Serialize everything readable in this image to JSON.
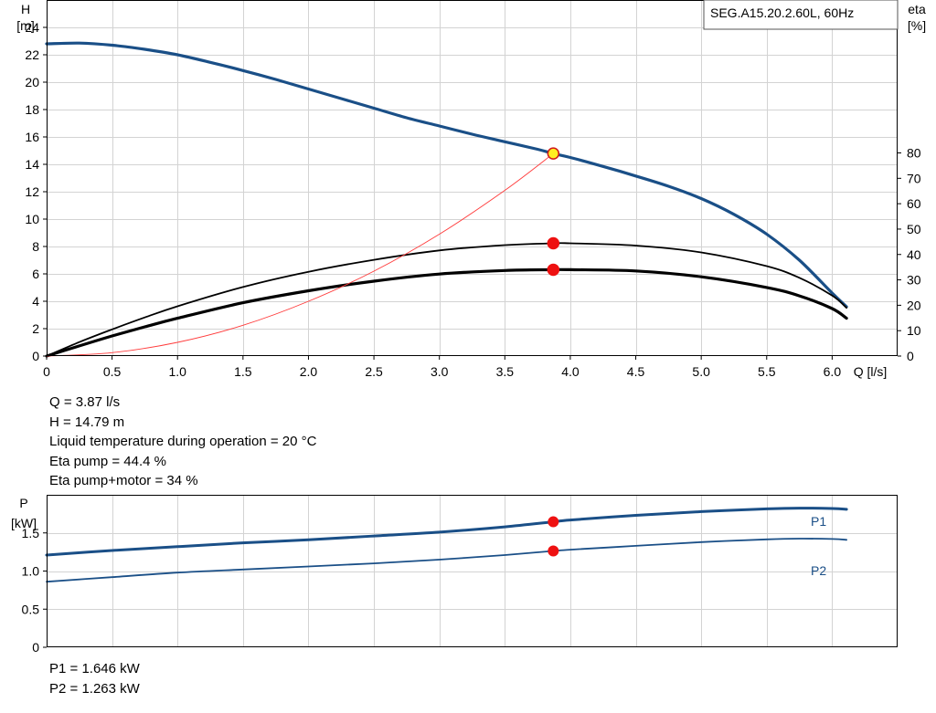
{
  "chart_data": [
    {
      "type": "line",
      "title": "SEG.A15.20.2.60L, 60Hz",
      "xlabel": "Q [l/s]",
      "ylabel_left_name": "H",
      "ylabel_left_unit": "[m]",
      "ylabel_right_name": "eta",
      "ylabel_right_unit": "[%]",
      "xlim": [
        0,
        6.5
      ],
      "ylim_left": [
        0,
        26
      ],
      "ylim_right": [
        0,
        80
      ],
      "x_ticks": [
        "0",
        "0.5",
        "1.0",
        "1.5",
        "2.0",
        "2.5",
        "3.0",
        "3.5",
        "4.0",
        "4.5",
        "5.0",
        "5.5",
        "6.0"
      ],
      "y_left_ticks": [
        "0",
        "2",
        "4",
        "6",
        "8",
        "10",
        "12",
        "14",
        "16",
        "18",
        "20",
        "22",
        "24"
      ],
      "y_right_ticks": [
        "0",
        "10",
        "20",
        "30",
        "40",
        "50",
        "60",
        "70",
        "80"
      ],
      "grid": true,
      "series": [
        {
          "axis": "left",
          "color": "#1a4f87",
          "width": 3.2,
          "x": [
            0,
            0.25,
            0.5,
            0.75,
            1.0,
            1.25,
            1.5,
            1.75,
            2.0,
            2.25,
            2.5,
            2.75,
            3.0,
            3.25,
            3.5,
            3.75,
            3.87,
            4.0,
            4.25,
            4.5,
            4.75,
            5.0,
            5.25,
            5.5,
            5.75,
            6.0,
            6.11
          ],
          "y": [
            22.8,
            22.85,
            22.7,
            22.4,
            22.0,
            21.45,
            20.85,
            20.2,
            19.5,
            18.8,
            18.1,
            17.4,
            16.8,
            16.2,
            15.65,
            15.1,
            14.79,
            14.5,
            13.85,
            13.15,
            12.4,
            11.5,
            10.35,
            8.9,
            7.0,
            4.6,
            3.6
          ]
        },
        {
          "axis": "right",
          "color": "#000000",
          "width": 1.8,
          "x": [
            0,
            0.25,
            0.5,
            0.75,
            1.0,
            1.5,
            2.0,
            2.5,
            3.0,
            3.5,
            3.87,
            4.0,
            4.5,
            5.0,
            5.5,
            5.75,
            6.0,
            6.11
          ],
          "y": [
            0,
            5.5,
            10.5,
            15.2,
            19.6,
            27.2,
            33.2,
            37.9,
            41.6,
            43.7,
            44.4,
            44.4,
            43.5,
            40.8,
            35.4,
            30.8,
            23.8,
            19.0
          ]
        },
        {
          "axis": "right",
          "color": "#000000",
          "width": 3.2,
          "x": [
            0,
            0.25,
            0.5,
            0.75,
            1.0,
            1.5,
            2.0,
            2.5,
            3.0,
            3.5,
            3.87,
            4.0,
            4.5,
            5.0,
            5.5,
            5.75,
            6.0,
            6.11
          ],
          "y": [
            0,
            4.0,
            7.9,
            11.5,
            14.9,
            21.0,
            25.7,
            29.5,
            32.3,
            33.7,
            34.0,
            34.0,
            33.5,
            31.2,
            27.0,
            23.7,
            18.7,
            14.9
          ]
        },
        {
          "axis": "left",
          "color": "#ff3b3b",
          "width": 0.9,
          "x": [
            0,
            0.5,
            1.0,
            1.5,
            2.0,
            2.5,
            3.0,
            3.5,
            3.87
          ],
          "y": [
            0,
            0.25,
            1.0,
            2.25,
            4.0,
            6.2,
            8.9,
            12.1,
            14.79
          ]
        }
      ],
      "markers": [
        {
          "axis": "left",
          "x": 3.87,
          "y": 14.79,
          "fill": "#ffee22",
          "stroke": "#d01818"
        },
        {
          "axis": "right",
          "x": 3.87,
          "y": 44.4,
          "fill": "#ee1111",
          "stroke": "#ee1111"
        },
        {
          "axis": "right",
          "x": 3.87,
          "y": 34.0,
          "fill": "#ee1111",
          "stroke": "#ee1111"
        }
      ]
    },
    {
      "type": "line",
      "ylabel_name": "P",
      "ylabel_unit": "[kW]",
      "xlim": [
        0,
        6.5
      ],
      "ylim": [
        0,
        2.0
      ],
      "y_ticks": [
        "0",
        "0.5",
        "1.0",
        "1.5"
      ],
      "grid": true,
      "series": [
        {
          "name": "P1",
          "color": "#1a4f87",
          "width": 3,
          "x": [
            0,
            0.5,
            1.0,
            1.5,
            2.0,
            2.5,
            3.0,
            3.5,
            3.87,
            4.0,
            4.5,
            5.0,
            5.5,
            5.75,
            6.0,
            6.11
          ],
          "y": [
            1.21,
            1.27,
            1.32,
            1.37,
            1.41,
            1.46,
            1.51,
            1.58,
            1.646,
            1.67,
            1.73,
            1.78,
            1.815,
            1.825,
            1.82,
            1.81
          ]
        },
        {
          "name": "P2",
          "color": "#1a4f87",
          "width": 1.8,
          "x": [
            0,
            0.5,
            1.0,
            1.5,
            2.0,
            2.5,
            3.0,
            3.5,
            3.87,
            4.0,
            4.5,
            5.0,
            5.5,
            5.75,
            6.0,
            6.11
          ],
          "y": [
            0.86,
            0.92,
            0.98,
            1.02,
            1.06,
            1.1,
            1.15,
            1.21,
            1.263,
            1.28,
            1.33,
            1.38,
            1.415,
            1.425,
            1.42,
            1.41
          ]
        }
      ],
      "markers": [
        {
          "x": 3.87,
          "y": 1.646,
          "fill": "#ee1111"
        },
        {
          "x": 3.87,
          "y": 1.263,
          "fill": "#ee1111"
        }
      ]
    }
  ],
  "duty_point": {
    "q": "Q = 3.87 l/s",
    "h": "H = 14.79 m",
    "temp": "Liquid temperature during operation = 20 °C",
    "eta_pump": "Eta pump = 44.4 %",
    "eta_total": "Eta pump+motor = 34 %"
  },
  "power_point": {
    "p1": "P1 = 1.646 kW",
    "p2": "P2 = 1.263 kW"
  }
}
